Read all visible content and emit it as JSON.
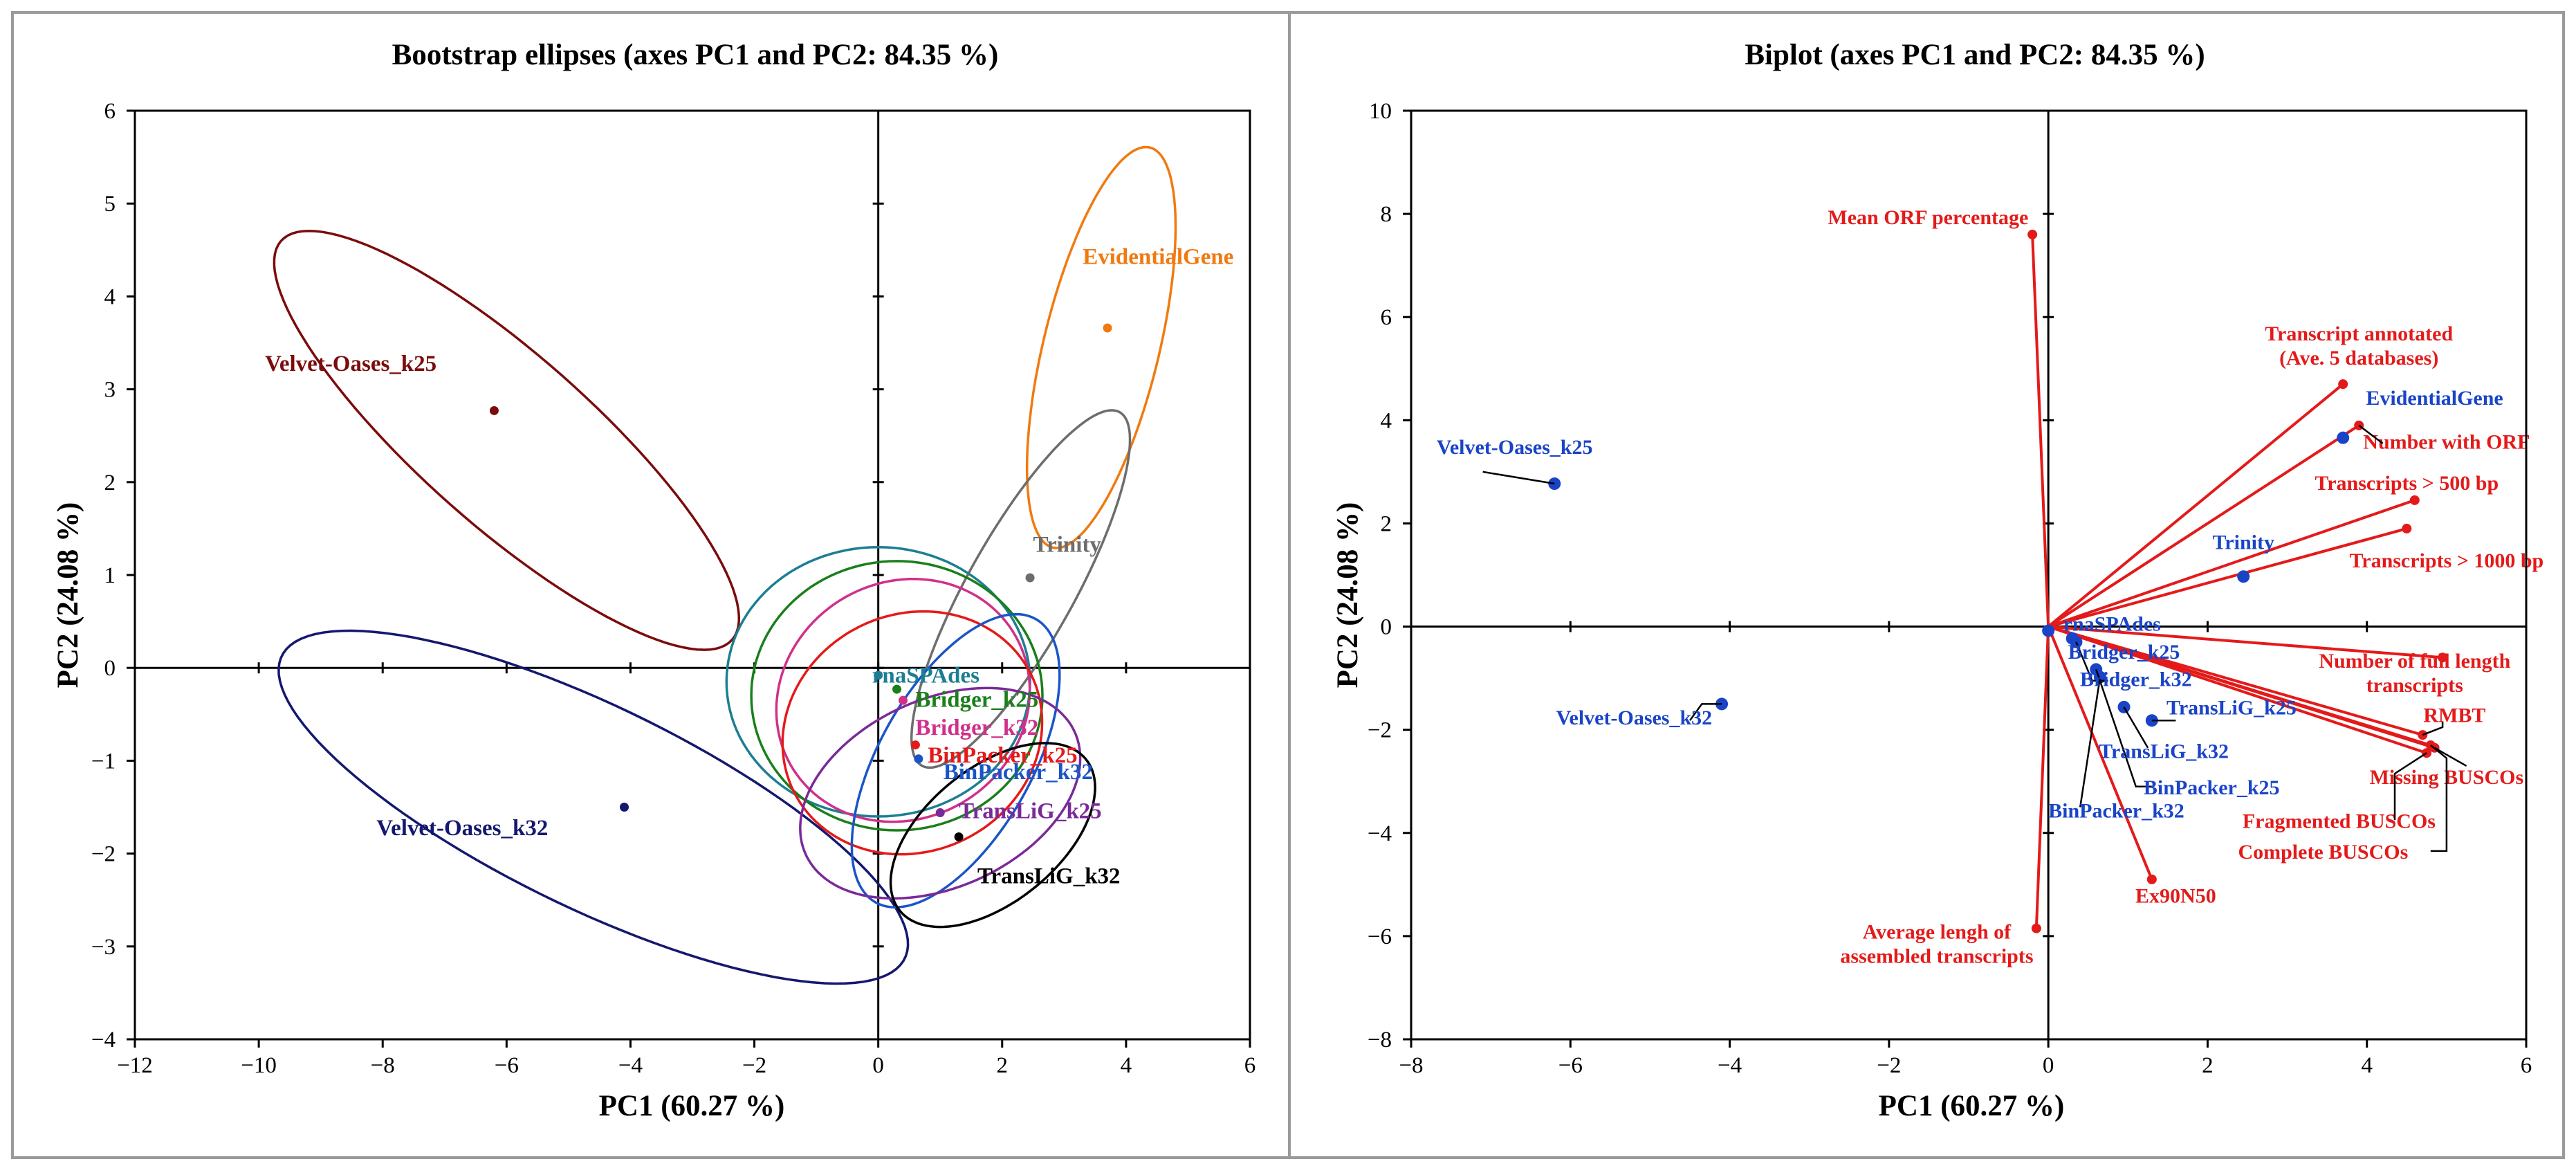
{
  "chart_data": [
    {
      "type": "scatter",
      "title": "Bootstrap ellipses (axes PC1 and PC2: 84.35 %)",
      "xlabel": "PC1 (60.27 %)",
      "ylabel": "PC2 (24.08 %)",
      "xlim": [
        -12,
        6
      ],
      "ylim": [
        -4,
        6
      ],
      "xticks": [
        -12,
        -10,
        -8,
        -6,
        -4,
        -2,
        0,
        2,
        4,
        6
      ],
      "yticks": [
        -4,
        -3,
        -2,
        -1,
        0,
        1,
        2,
        3,
        4,
        5,
        6
      ],
      "tick_labels_x": [
        "−12",
        "−10",
        "−8",
        "−6",
        "−4",
        "−2",
        "0",
        "2",
        "4",
        "6"
      ],
      "tick_labels_y": [
        "−4",
        "−3",
        "−2",
        "−1",
        "0",
        "1",
        "2",
        "3",
        "4",
        "5",
        "6"
      ],
      "points": [
        {
          "name": "Velvet-Oases_k25",
          "x": -6.2,
          "y": 2.77,
          "color": "#7b0c0c",
          "lx": -9.9,
          "ly": 3.2
        },
        {
          "name": "EvidentialGene",
          "x": 3.7,
          "y": 3.66,
          "color": "#f07a10",
          "lx": 3.3,
          "ly": 4.35
        },
        {
          "name": "Trinity",
          "x": 2.45,
          "y": 0.97,
          "color": "#6d6d6d",
          "lx": 2.5,
          "ly": 1.25
        },
        {
          "name": "rnaSPAdes",
          "x": 0.0,
          "y": -0.08,
          "color": "#1d7e92",
          "lx": -0.1,
          "ly": -0.16
        },
        {
          "name": "Bridger_k25",
          "x": 0.3,
          "y": -0.23,
          "color": "#1a7f1a",
          "lx": 0.6,
          "ly": -0.42
        },
        {
          "name": "Bridger_k32",
          "x": 0.4,
          "y": -0.35,
          "color": "#d0308a",
          "lx": 0.6,
          "ly": -0.72
        },
        {
          "name": "BinPacker_k25",
          "x": 0.6,
          "y": -0.83,
          "color": "#e41a1a",
          "lx": 0.8,
          "ly": -1.02
        },
        {
          "name": "BinPacker_k32",
          "x": 0.65,
          "y": -0.98,
          "color": "#1a55c8",
          "lx": 1.05,
          "ly": -1.2
        },
        {
          "name": "TransLiG_k25",
          "x": 1.0,
          "y": -1.56,
          "color": "#7a2a98",
          "lx": 1.3,
          "ly": -1.62
        },
        {
          "name": "TransLiG_k32",
          "x": 1.3,
          "y": -1.82,
          "color": "#000000",
          "lx": 1.6,
          "ly": -2.32
        },
        {
          "name": "Velvet-Oases_k32",
          "x": -4.1,
          "y": -1.5,
          "color": "#14186e",
          "lx": -8.1,
          "ly": -1.8
        }
      ],
      "ellipses": [
        {
          "name": "Velvet-Oases_k25",
          "cx": -6.0,
          "cy": 2.45,
          "rx": 4.25,
          "ry": 1.05,
          "angle": -29,
          "color": "#7b0c0c"
        },
        {
          "name": "EvidentialGene",
          "cx": 3.6,
          "cy": 3.45,
          "rx": 2.3,
          "ry": 0.9,
          "angle": 68,
          "color": "#f07a10"
        },
        {
          "name": "Trinity",
          "cx": 2.3,
          "cy": 0.85,
          "rx": 2.5,
          "ry": 0.75,
          "angle": 48,
          "color": "#6d6d6d"
        },
        {
          "name": "Velvet-Oases_k32",
          "cx": -4.6,
          "cy": -1.5,
          "rx": 5.3,
          "ry": 1.15,
          "angle": -17,
          "color": "#14186e"
        },
        {
          "name": "rnaSPAdes",
          "cx": 0.0,
          "cy": -0.15,
          "rx": 2.45,
          "ry": 1.45,
          "angle": 0,
          "color": "#1d7e92"
        },
        {
          "name": "Bridger_k25",
          "cx": 0.3,
          "cy": -0.3,
          "rx": 2.35,
          "ry": 1.45,
          "angle": 0,
          "color": "#1a7f1a"
        },
        {
          "name": "Bridger_k32",
          "cx": 0.4,
          "cy": -0.35,
          "rx": 2.05,
          "ry": 1.3,
          "angle": 5,
          "color": "#d0308a"
        },
        {
          "name": "BinPacker_k25",
          "cx": 0.55,
          "cy": -0.7,
          "rx": 2.1,
          "ry": 1.3,
          "angle": 5,
          "color": "#e41a1a"
        },
        {
          "name": "BinPacker_k32",
          "cx": 1.25,
          "cy": -1.0,
          "rx": 2.05,
          "ry": 1.05,
          "angle": 42,
          "color": "#1a55c8"
        },
        {
          "name": "TransLiG_k25",
          "cx": 1.0,
          "cy": -1.35,
          "rx": 2.3,
          "ry": 1.05,
          "angle": 12,
          "color": "#7a2a98"
        },
        {
          "name": "TransLiG_k32",
          "cx": 1.85,
          "cy": -1.8,
          "rx": 1.75,
          "ry": 0.8,
          "angle": 22,
          "color": "#000000"
        }
      ]
    },
    {
      "type": "biplot",
      "title": "Biplot (axes PC1 and PC2: 84.35 %)",
      "xlabel": "PC1 (60.27 %)",
      "ylabel": "PC2 (24.08 %)",
      "xlim": [
        -8,
        6
      ],
      "ylim": [
        -8,
        10
      ],
      "xticks": [
        -8,
        -6,
        -4,
        -2,
        0,
        2,
        4,
        6
      ],
      "yticks": [
        -8,
        -6,
        -4,
        -2,
        0,
        2,
        4,
        6,
        8,
        10
      ],
      "tick_labels_x": [
        "−8",
        "−6",
        "−4",
        "−2",
        "0",
        "2",
        "4",
        "6"
      ],
      "tick_labels_y": [
        "−8",
        "−6",
        "−4",
        "−2",
        "0",
        "2",
        "4",
        "6",
        "8",
        "10"
      ],
      "variables": [
        {
          "label": [
            "Mean ORF percentage"
          ],
          "x": -0.2,
          "y": 7.6,
          "lx": -0.25,
          "ly": 7.8,
          "anchor": "end"
        },
        {
          "label": [
            "Transcript annotated",
            "(Ave. 5 databases)"
          ],
          "x": 3.7,
          "y": 4.7,
          "lx": 3.9,
          "ly": 5.55,
          "anchor": "middle"
        },
        {
          "label": [
            "Number with ORF"
          ],
          "x": 3.9,
          "y": 3.9,
          "lx": 5.0,
          "ly": 3.45,
          "anchor": "middle"
        },
        {
          "label": [
            "Transcripts > 500 bp"
          ],
          "x": 4.6,
          "y": 2.45,
          "lx": 4.5,
          "ly": 2.65,
          "anchor": "middle"
        },
        {
          "label": [
            "Transcripts > 1000 bp"
          ],
          "x": 4.5,
          "y": 1.9,
          "lx": 5.0,
          "ly": 1.15,
          "anchor": "middle"
        },
        {
          "label": [
            "Number of full length",
            "transcripts"
          ],
          "x": 4.95,
          "y": -0.6,
          "lx": 4.6,
          "ly": -0.8,
          "anchor": "middle"
        },
        {
          "label": [
            "RMBT"
          ],
          "x": 4.7,
          "y": -2.1,
          "lx": 5.1,
          "ly": -1.85,
          "anchor": "middle"
        },
        {
          "label": [
            "Missing BUSCOs"
          ],
          "x": 4.85,
          "y": -2.35,
          "lx": 5.0,
          "ly": -3.05,
          "anchor": "middle"
        },
        {
          "label": [
            "Fragmented BUSCOs"
          ],
          "x": 4.75,
          "y": -2.45,
          "lx": 3.65,
          "ly": -3.9,
          "anchor": "middle"
        },
        {
          "label": [
            "Complete BUSCOs"
          ],
          "x": 4.8,
          "y": -2.3,
          "lx": 3.45,
          "ly": -4.5,
          "anchor": "middle"
        },
        {
          "label": [
            "Ex90N50"
          ],
          "x": 1.3,
          "y": -4.9,
          "lx": 1.6,
          "ly": -5.35,
          "anchor": "middle"
        },
        {
          "label": [
            "Average lengh of",
            "assembled transcripts"
          ],
          "x": -0.15,
          "y": -5.85,
          "lx": -1.4,
          "ly": -6.05,
          "anchor": "middle"
        }
      ],
      "observations": [
        {
          "name": "Velvet-Oases_k25",
          "x": -6.2,
          "y": 2.77,
          "lx": -6.7,
          "ly": 3.35,
          "anchor": "middle"
        },
        {
          "name": "EvidentialGene",
          "x": 3.7,
          "y": 3.66,
          "lx": 4.85,
          "ly": 4.3,
          "anchor": "middle"
        },
        {
          "name": "Trinity",
          "x": 2.45,
          "y": 0.97,
          "lx": 2.45,
          "ly": 1.5,
          "anchor": "middle"
        },
        {
          "name": "rnaSPAdes",
          "x": 0.0,
          "y": -0.08,
          "lx": 0.8,
          "ly": -0.08,
          "anchor": "middle"
        },
        {
          "name": "Bridger_k25",
          "x": 0.3,
          "y": -0.23,
          "lx": 0.95,
          "ly": -0.62,
          "anchor": "middle"
        },
        {
          "name": "Bridger_k32",
          "x": 0.35,
          "y": -0.3,
          "lx": 1.1,
          "ly": -1.15,
          "anchor": "middle"
        },
        {
          "name": "BinPacker_k25",
          "x": 0.6,
          "y": -0.83,
          "lx": 2.05,
          "ly": -3.25,
          "anchor": "middle"
        },
        {
          "name": "BinPacker_k32",
          "x": 0.65,
          "y": -0.98,
          "lx": 0.0,
          "ly": -3.7,
          "anchor": "start"
        },
        {
          "name": "TransLiG_k25",
          "x": 0.95,
          "y": -1.56,
          "lx": 2.3,
          "ly": -1.7,
          "anchor": "middle"
        },
        {
          "name": "TransLiG_k32",
          "x": 1.3,
          "y": -1.82,
          "lx": 1.45,
          "ly": -2.55,
          "anchor": "middle"
        },
        {
          "name": "Velvet-Oases_k32",
          "x": -4.1,
          "y": -1.5,
          "lx": -5.2,
          "ly": -1.9,
          "anchor": "middle"
        }
      ],
      "colors": {
        "variable": "#e41a1a",
        "observation": "#1a44c8"
      }
    }
  ]
}
